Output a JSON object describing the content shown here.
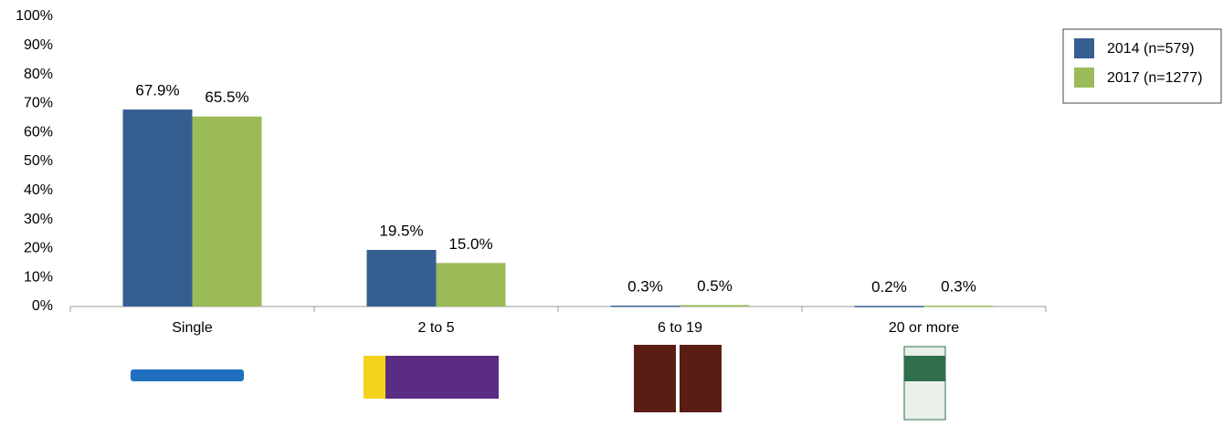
{
  "chart_data": {
    "type": "bar",
    "categories": [
      "Single",
      "2 to 5",
      "6 to 19",
      "20 or more"
    ],
    "series": [
      {
        "name": "2014 (n=579)",
        "color": "#365f91",
        "values": [
          67.9,
          19.5,
          0.3,
          0.2
        ],
        "value_labels": [
          "67.9%",
          "19.5%",
          "0.3%",
          "0.2%"
        ]
      },
      {
        "name": "2017 (n=1277)",
        "color": "#9bbb59",
        "values": [
          65.5,
          15.0,
          0.5,
          0.3
        ],
        "value_labels": [
          "65.5%",
          "15.0%",
          "0.5%",
          "0.3%"
        ]
      }
    ],
    "ylim": [
      0,
      100
    ],
    "yticks": [
      {
        "value": 0,
        "label": "0%"
      },
      {
        "value": 10,
        "label": "10%"
      },
      {
        "value": 20,
        "label": "20%"
      },
      {
        "value": 30,
        "label": "30%"
      },
      {
        "value": 40,
        "label": "40%"
      },
      {
        "value": 50,
        "label": "50%"
      },
      {
        "value": 60,
        "label": "60%"
      },
      {
        "value": 70,
        "label": "70%"
      },
      {
        "value": 80,
        "label": "80%"
      },
      {
        "value": 90,
        "label": "90%"
      },
      {
        "value": 100,
        "label": "100%"
      }
    ],
    "grid": false,
    "legend": "top-right"
  }
}
